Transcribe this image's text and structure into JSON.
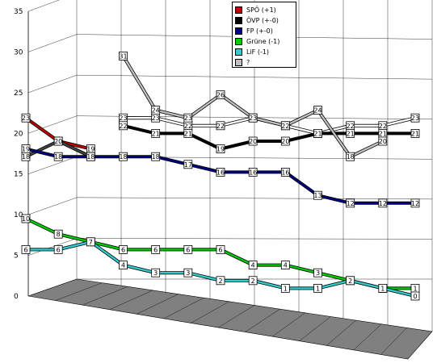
{
  "chart_data": {
    "type": "line",
    "ylim": [
      0,
      35
    ],
    "y_ticks": [
      "0",
      "5",
      "10",
      "15",
      "20",
      "25",
      "30",
      "35"
    ],
    "grid": true,
    "legend_position": "top-right",
    "series": [
      {
        "name": "SPÖ (+1)",
        "color": "#c00000",
        "values": [
          23,
          20,
          19,
          null,
          null,
          null,
          null,
          null,
          null,
          null,
          null,
          null,
          null
        ]
      },
      {
        "name": "SPÖ (+1)",
        "color": "#ffffff",
        "values": [
          null,
          null,
          null,
          23,
          23,
          22,
          22,
          23,
          22,
          21,
          22,
          22,
          23
        ]
      },
      {
        "name": "ÖVP (+-0)",
        "color": "#000000",
        "values": [
          null,
          null,
          null,
          22,
          21,
          21,
          19,
          20,
          20,
          21,
          21,
          21,
          21
        ]
      },
      {
        "name": "ÖVP (+-0)",
        "color": "#404040",
        "values": [
          18,
          20,
          18,
          null,
          null,
          null,
          null,
          null,
          null,
          null,
          null,
          null,
          null
        ]
      },
      {
        "name": "FP (+-0)",
        "color": "#000080",
        "values": [
          19,
          18,
          18,
          18,
          18,
          17,
          16,
          16,
          16,
          13,
          12,
          12,
          12
        ]
      },
      {
        "name": "Grüne (-1)",
        "color": "#00cc00",
        "values": [
          10,
          8,
          7,
          6,
          6,
          6,
          6,
          4,
          4,
          3,
          2,
          1,
          1
        ]
      },
      {
        "name": "LiF (-1)",
        "color": "#33cccc",
        "values": [
          6,
          6,
          7,
          4,
          3,
          3,
          2,
          2,
          1,
          1,
          2,
          1,
          0
        ]
      },
      {
        "name": "?",
        "color": "#c0c0c0",
        "values": [
          null,
          null,
          null,
          31,
          24,
          23,
          26,
          23,
          22,
          24,
          18,
          20,
          null
        ]
      }
    ]
  }
}
